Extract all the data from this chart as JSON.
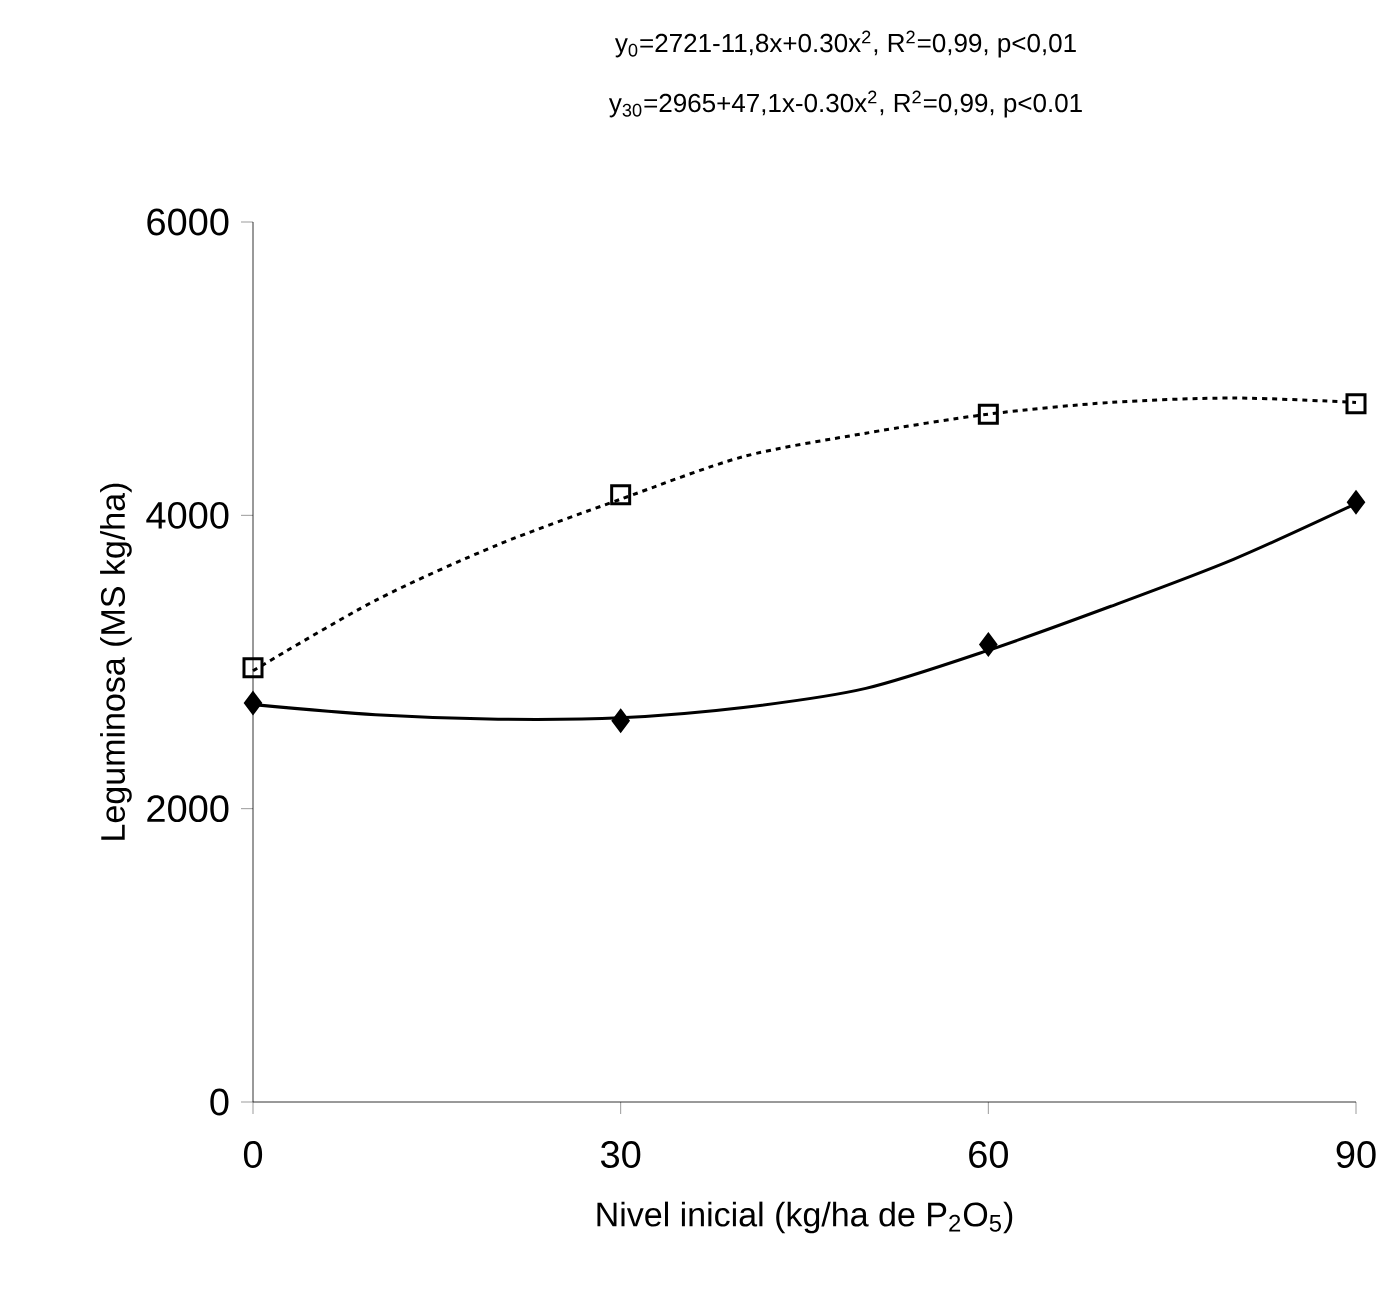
{
  "chart_data": {
    "type": "line",
    "xlabel": "Nivel inicial (kg/ha de P$_{2}$O$_{5}$)",
    "ylabel": "Leguminosa (MS kg/ha)",
    "annotations": [
      "y$_{0}$=2721-11,8x+0.30x$^{2}$, R$^{2}$=0,99, p<0,01",
      "y$_{30}$=2965+47,1x-0.30x$^{2}$, R$^{2}$=0,99, p<0.01"
    ],
    "x": [
      0,
      30,
      60,
      90
    ],
    "series": [
      {
        "type": "scatter",
        "color": "#000000",
        "marker": "diamond",
        "values": [
          2720,
          2600,
          3120,
          4090
        ]
      },
      {
        "type": "scatter",
        "color": "#000000",
        "marker": "square",
        "values": [
          2960,
          4140,
          4690,
          4760
        ]
      },
      {
        "color": "#000000",
        "line_style": "solid",
        "x": [
          0,
          10,
          20,
          30,
          40,
          50,
          60,
          70,
          80,
          90
        ],
        "values": [
          2710,
          2640,
          2610,
          2620,
          2690,
          2820,
          3080,
          3380,
          3700,
          4080
        ]
      },
      {
        "color": "#000000",
        "line_style": "dotted",
        "x": [
          0,
          10,
          20,
          30,
          40,
          50,
          60,
          70,
          80,
          90
        ],
        "values": [
          2940,
          3420,
          3800,
          4110,
          4400,
          4560,
          4690,
          4770,
          4800,
          4770
        ]
      }
    ],
    "xlim": [
      0,
      90
    ],
    "xticks": [
      0,
      30,
      60,
      90
    ],
    "ylim": [
      0,
      6000
    ],
    "yticks": [
      0,
      2000,
      4000,
      6000
    ]
  }
}
